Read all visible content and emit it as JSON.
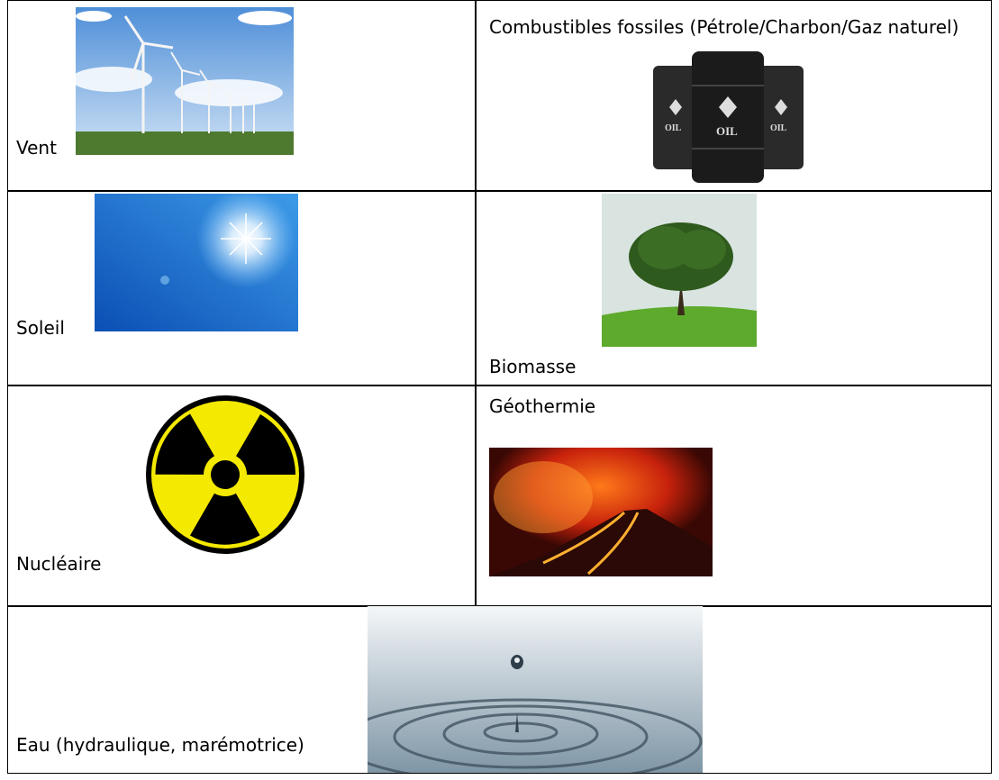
{
  "table": {
    "cells": [
      [
        "Vent",
        "Combustibles fossiles (Pétrole/Charbon/Gaz naturel)"
      ],
      [
        "Soleil",
        "Biomasse"
      ],
      [
        "Nucléaire",
        "Géothermie"
      ],
      [
        "Eau (hydraulique, marémotrice)"
      ]
    ]
  }
}
